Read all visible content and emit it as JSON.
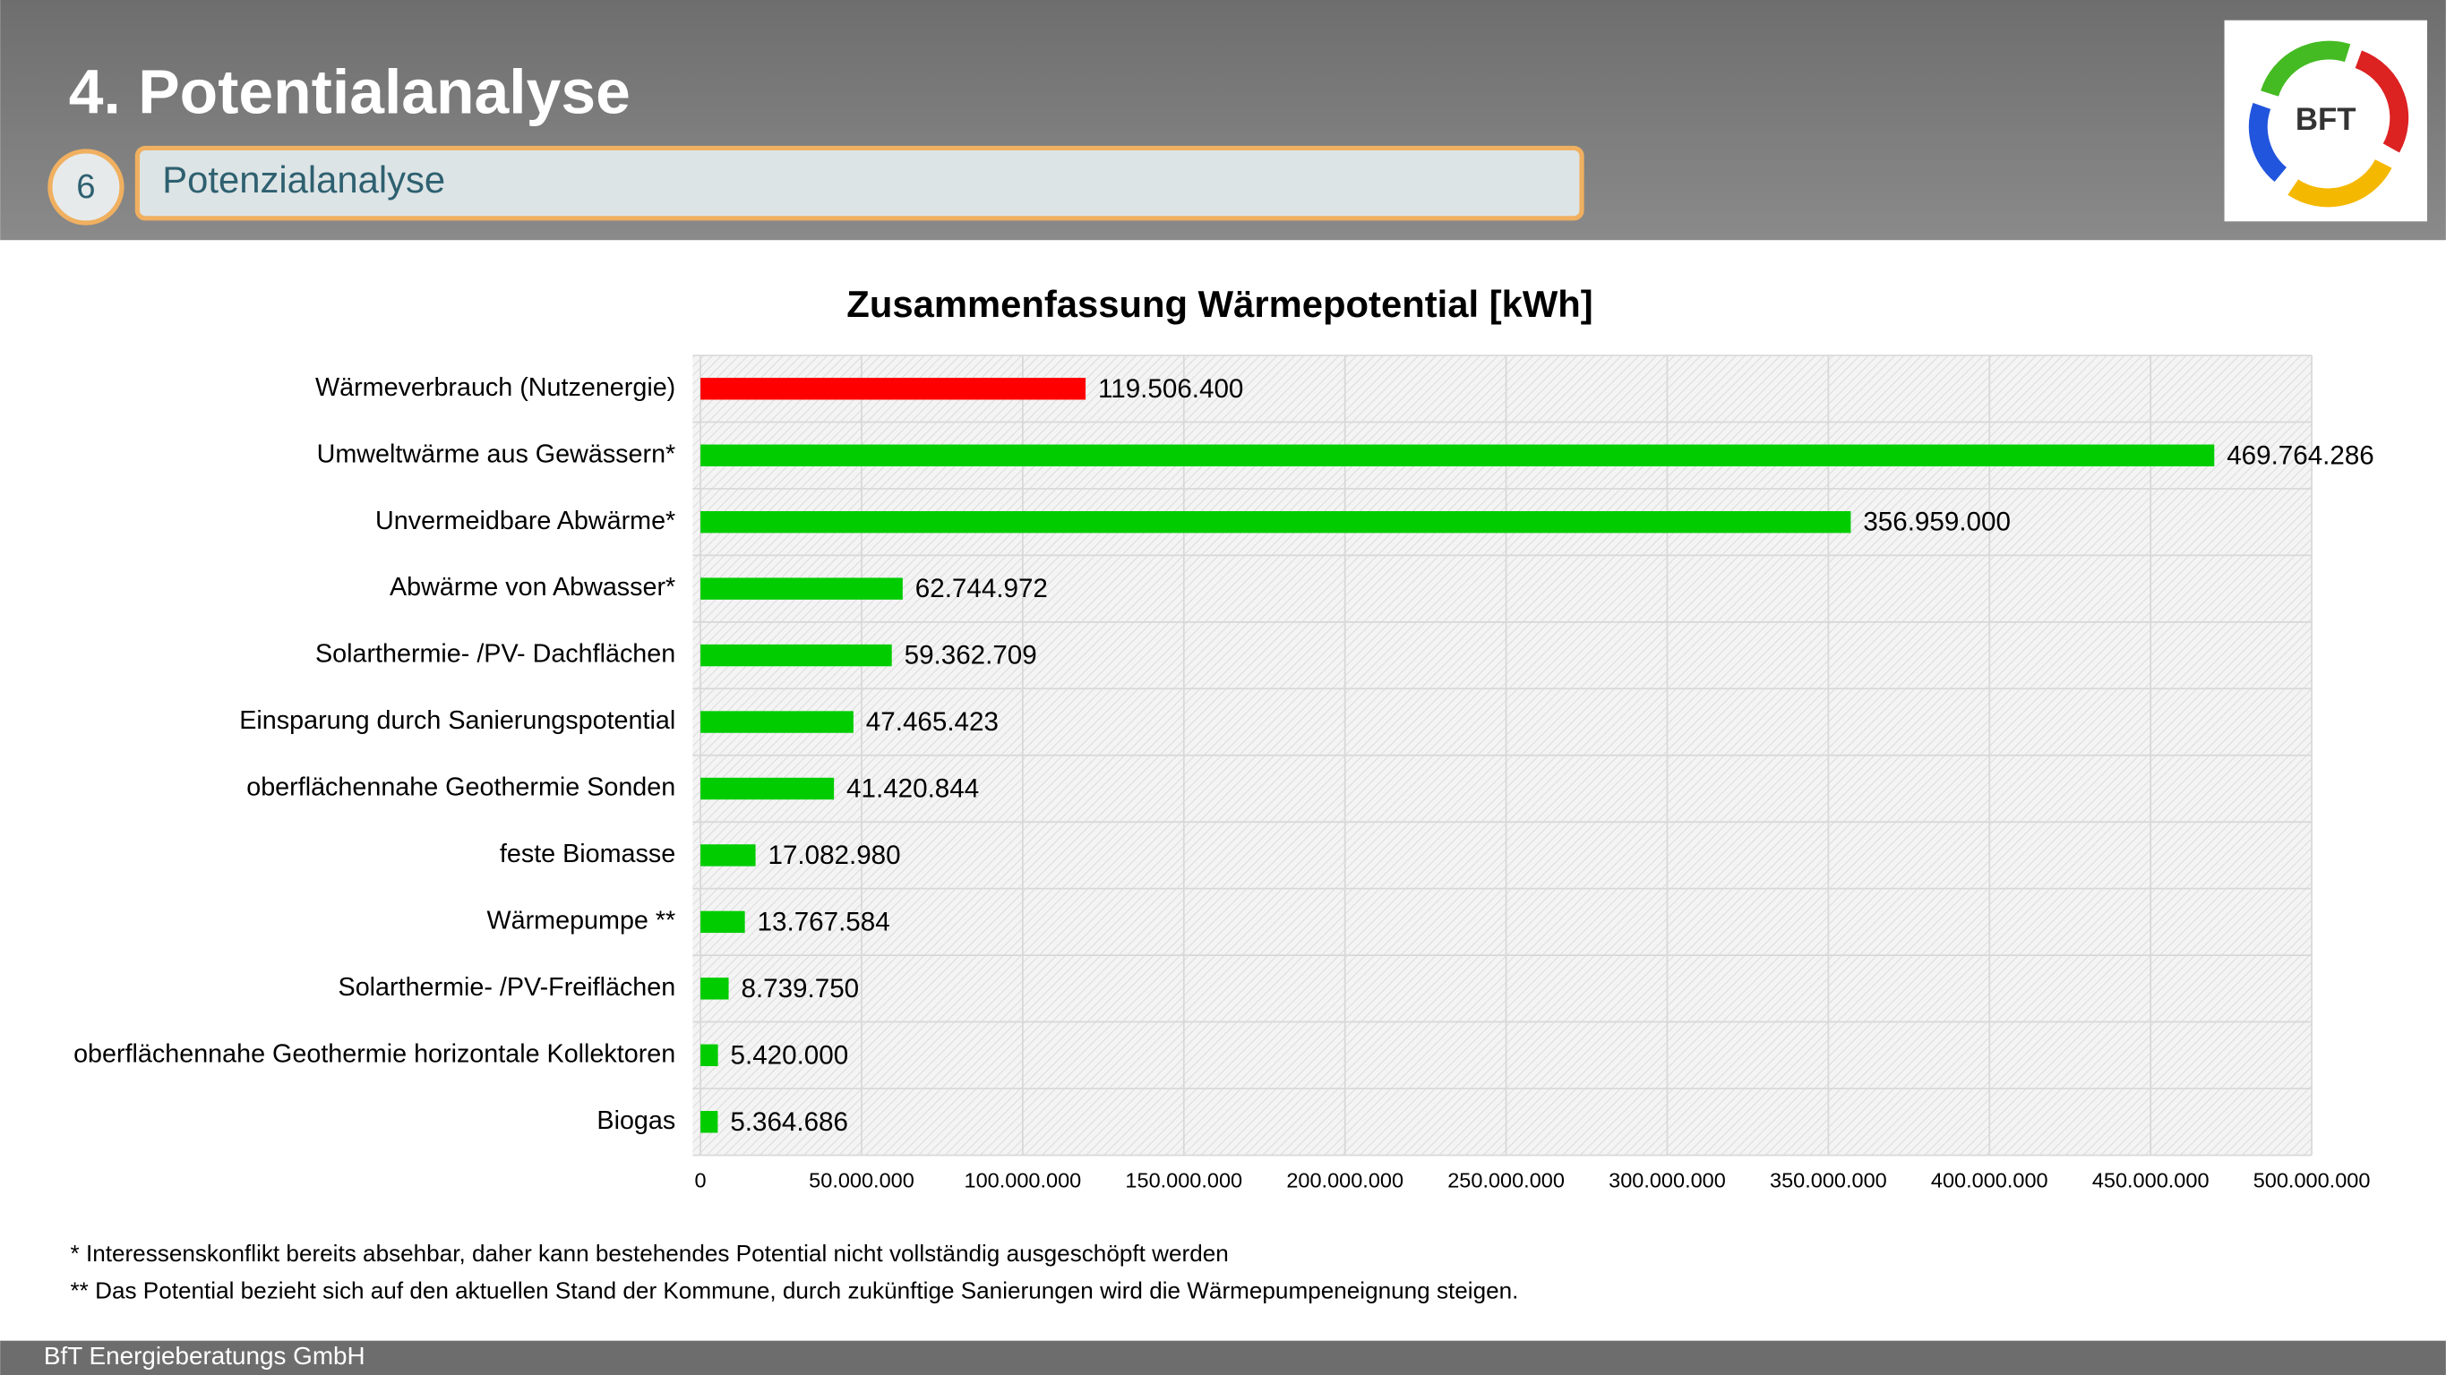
{
  "header": {
    "title": "4. Potentialanalyse",
    "section_number": "6",
    "section_title": "Potenzialanalyse",
    "logo_text": "BFT"
  },
  "chart_data": {
    "type": "hbar",
    "title": "Zusammenfassung Wärmepotential [kWh]",
    "categories": [
      "Wärmeverbrauch (Nutzenergie)",
      "Umweltwärme aus Gewässern*",
      "Unvermeidbare Abwärme*",
      "Abwärme von Abwasser*",
      "Solarthermie- /PV- Dachflächen",
      "Einsparung durch Sanierungspotential",
      "oberflächennahe Geothermie Sonden",
      "feste Biomasse",
      "Wärmepumpe **",
      "Solarthermie- /PV-Freiflächen",
      "oberflächennahe Geothermie horizontale Kollektoren",
      "Biogas"
    ],
    "values": [
      119506400,
      469764286,
      356959000,
      62744972,
      59362709,
      47465423,
      41420844,
      17082980,
      13767584,
      8739750,
      5420000,
      5364686
    ],
    "value_labels": [
      "119.506.400",
      "469.764.286",
      "356.959.000",
      "62.744.972",
      "59.362.709",
      "47.465.423",
      "41.420.844",
      "17.082.980",
      "13.767.584",
      "8.739.750",
      "5.420.000",
      "5.364.686"
    ],
    "colors": [
      "#ff0000",
      "#00cc00",
      "#00cc00",
      "#00cc00",
      "#00cc00",
      "#00cc00",
      "#00cc00",
      "#00cc00",
      "#00cc00",
      "#00cc00",
      "#00cc00",
      "#00cc00"
    ],
    "xlim": [
      0,
      500000000
    ],
    "xticks": [
      0,
      {
        "value": 50000000,
        "label": "50.000.000"
      },
      {
        "value": 100000000,
        "label": "100.000.000"
      },
      {
        "value": 150000000,
        "label": "150.000.000"
      },
      {
        "value": 200000000,
        "label": "200.000.000"
      },
      {
        "value": 250000000,
        "label": "250.000.000"
      },
      {
        "value": 300000000,
        "label": "300.000.000"
      },
      {
        "value": 350000000,
        "label": "350.000.000"
      },
      {
        "value": 400000000,
        "label": "400.000.000"
      },
      {
        "value": 450000000,
        "label": "450.000.000"
      },
      {
        "value": 500000000,
        "label": "500.000.000"
      }
    ],
    "grid": true
  },
  "footnotes": [
    "* Interessenskonflikt bereits absehbar, daher kann bestehendes Potential nicht vollständig ausgeschöpft werden",
    "** Das Potential bezieht sich auf den aktuellen Stand der Kommune, durch zukünftige Sanierungen wird die Wärmepumpeneignung steigen."
  ],
  "footer": "BfT Energieberatungs GmbH"
}
